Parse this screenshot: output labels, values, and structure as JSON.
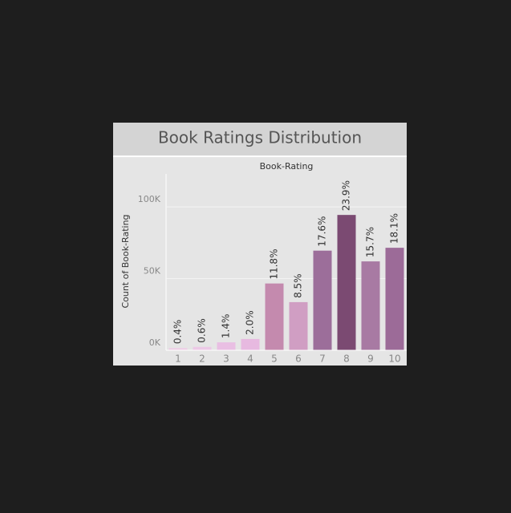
{
  "chart_data": {
    "type": "bar",
    "title": "Book Ratings Distribution",
    "x_label": "Book-Rating",
    "y_label": "Count of Book-Rating",
    "categories": [
      "1",
      "2",
      "3",
      "4",
      "5",
      "6",
      "7",
      "8",
      "9",
      "10"
    ],
    "values": [
      1580,
      2370,
      5530,
      7900,
      46600,
      33600,
      69500,
      94400,
      62000,
      71500
    ],
    "percentages": [
      0.4,
      0.6,
      1.4,
      2.0,
      11.8,
      8.5,
      17.6,
      23.9,
      15.7,
      18.1
    ],
    "percentage_labels": [
      "0.4%",
      "0.6%",
      "1.4%",
      "2.0%",
      "11.8%",
      "8.5%",
      "17.6%",
      "23.9%",
      "15.7%",
      "18.1%"
    ],
    "colors": [
      "#edcfe6",
      "#ecc9e6",
      "#e9bfe3",
      "#e7b9e0",
      "#c48aae",
      "#d09ec3",
      "#9c6e9a",
      "#7b4a72",
      "#a87aa3",
      "#9c6b98"
    ],
    "ylim": [
      0,
      123000
    ],
    "yticks": [
      {
        "value": 0,
        "label": "0K"
      },
      {
        "value": 50000,
        "label": "50K"
      },
      {
        "value": 100000,
        "label": "100K"
      }
    ],
    "grid": true
  }
}
